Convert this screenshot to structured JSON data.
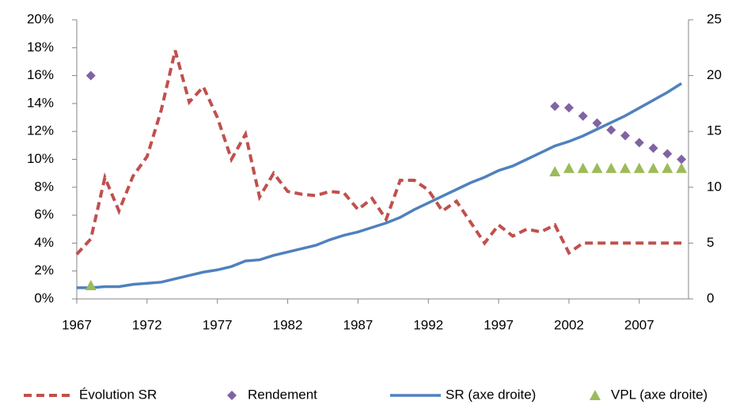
{
  "chart_data": {
    "type": "line",
    "xlim": [
      1967,
      2010.5
    ],
    "xticks": [
      1967,
      1972,
      1977,
      1982,
      1987,
      1992,
      1997,
      2002,
      2007
    ],
    "ylim": [
      0,
      20
    ],
    "yticks": [
      {
        "value": 0,
        "label": "0%"
      },
      {
        "value": 2,
        "label": "2%"
      },
      {
        "value": 4,
        "label": "4%"
      },
      {
        "value": 6,
        "label": "6%"
      },
      {
        "value": 8,
        "label": "8%"
      },
      {
        "value": 10,
        "label": "10%"
      },
      {
        "value": 12,
        "label": "12%"
      },
      {
        "value": 14,
        "label": "14%"
      },
      {
        "value": 16,
        "label": "16%"
      },
      {
        "value": 18,
        "label": "18%"
      },
      {
        "value": 20,
        "label": "20%"
      }
    ],
    "y2lim": [
      0,
      25
    ],
    "y2ticks": [
      0,
      5,
      10,
      15,
      20,
      25
    ],
    "legend": "bottom",
    "series": [
      {
        "name": "Évolution SR",
        "color": "#c0504d",
        "dash": true,
        "marker": null,
        "x": [
          1967,
          1968,
          1969,
          1970,
          1971,
          1972,
          1973,
          1974,
          1975,
          1976,
          1977,
          1978,
          1979,
          1980,
          1981,
          1982,
          1983,
          1984,
          1985,
          1986,
          1987,
          1988,
          1989,
          1990,
          1991,
          1992,
          1993,
          1994,
          1995,
          1996,
          1997,
          1998,
          1999,
          2000,
          2001,
          2002,
          2003,
          2004,
          2005,
          2006,
          2007,
          2008,
          2009,
          2010
        ],
        "values": [
          3.2,
          4.3,
          8.7,
          6.3,
          8.8,
          10.2,
          13.5,
          17.8,
          14.1,
          15.2,
          13.0,
          10.0,
          11.8,
          7.3,
          9.0,
          7.7,
          7.5,
          7.4,
          7.7,
          7.6,
          6.4,
          7.2,
          5.7,
          8.5,
          8.5,
          7.8,
          6.3,
          7.0,
          5.5,
          4.0,
          5.3,
          4.5,
          5.0,
          4.8,
          5.3,
          3.3,
          4.0,
          4.0,
          4.0,
          4.0,
          4.0,
          4.0,
          4.0,
          4.0
        ]
      },
      {
        "name": "Rendement",
        "color": "#8064a2",
        "dash": false,
        "marker": "diamond",
        "x": [
          1968,
          2001,
          2002,
          2003,
          2004,
          2005,
          2006,
          2007,
          2008,
          2009,
          2010
        ],
        "values": [
          16.0,
          13.8,
          13.7,
          13.1,
          12.6,
          12.1,
          11.7,
          11.2,
          10.8,
          10.4,
          10.0
        ]
      },
      {
        "name": "SR (axe droite)",
        "color": "#4f81bd",
        "dash": false,
        "marker": null,
        "axis": "y2",
        "x": [
          1967,
          1968,
          1969,
          1970,
          1971,
          1972,
          1973,
          1974,
          1975,
          1976,
          1977,
          1978,
          1979,
          1980,
          1981,
          1982,
          1983,
          1984,
          1985,
          1986,
          1987,
          1988,
          1989,
          1990,
          1991,
          1992,
          1993,
          1994,
          1995,
          1996,
          1997,
          1998,
          1999,
          2000,
          2001,
          2002,
          2003,
          2004,
          2005,
          2006,
          2007,
          2008,
          2009,
          2010
        ],
        "values": [
          1.0,
          1.0,
          1.1,
          1.1,
          1.3,
          1.4,
          1.5,
          1.8,
          2.1,
          2.4,
          2.6,
          2.9,
          3.4,
          3.5,
          3.9,
          4.2,
          4.5,
          4.8,
          5.3,
          5.7,
          6.0,
          6.4,
          6.8,
          7.3,
          8.0,
          8.6,
          9.2,
          9.8,
          10.4,
          10.9,
          11.5,
          11.9,
          12.5,
          13.1,
          13.7,
          14.1,
          14.6,
          15.2,
          15.8,
          16.4,
          17.1,
          17.8,
          18.5,
          19.3
        ]
      },
      {
        "name": "VPL (axe droite)",
        "color": "#9bbb59",
        "dash": false,
        "marker": "triangle",
        "axis": "y2",
        "x": [
          1968,
          2001,
          2002,
          2003,
          2004,
          2005,
          2006,
          2007,
          2008,
          2009,
          2010
        ],
        "values": [
          1.2,
          11.4,
          11.7,
          11.7,
          11.7,
          11.7,
          11.7,
          11.7,
          11.7,
          11.7,
          11.7
        ]
      }
    ]
  }
}
